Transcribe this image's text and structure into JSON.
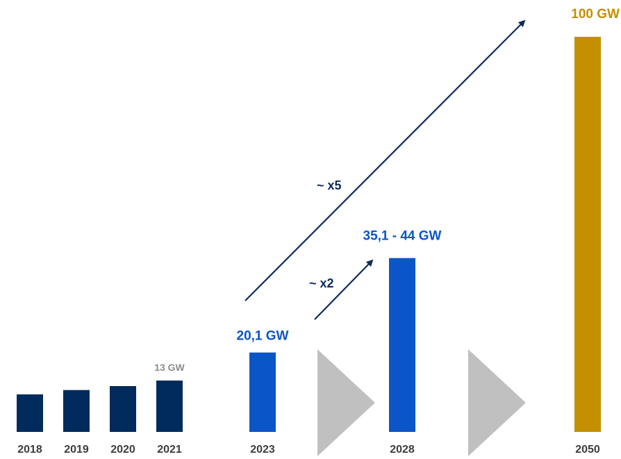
{
  "chart_data": {
    "type": "bar",
    "categories": [
      "2018",
      "2019",
      "2020",
      "2021",
      "2023",
      "2028",
      "2050"
    ],
    "values": [
      9.5,
      10.6,
      11.6,
      13,
      20.1,
      44,
      100
    ],
    "value_labels": [
      "",
      "",
      "",
      "13 GW",
      "20,1 GW",
      "35,1 - 44 GW",
      "100 GW"
    ],
    "colors": [
      "#002b5c",
      "#002b5c",
      "#002b5c",
      "#002b5c",
      "#0a55c8",
      "#0a55c8",
      "#c48f00"
    ],
    "label_colors": [
      "#8c8c8c",
      "#8c8c8c",
      "#8c8c8c",
      "#8c8c8c",
      "#0a55c8",
      "#0a55c8",
      "#c48f00"
    ],
    "ylim": [
      0,
      100
    ],
    "grid": false,
    "legend": "none",
    "annotations": [
      {
        "text": "~ x2",
        "from": "2023",
        "to": "2028"
      },
      {
        "text": "~ x5",
        "from": "2023",
        "to": "2050"
      }
    ],
    "arrow_color": "#0d2a5c",
    "chevron_color": "#c0c0c0"
  }
}
